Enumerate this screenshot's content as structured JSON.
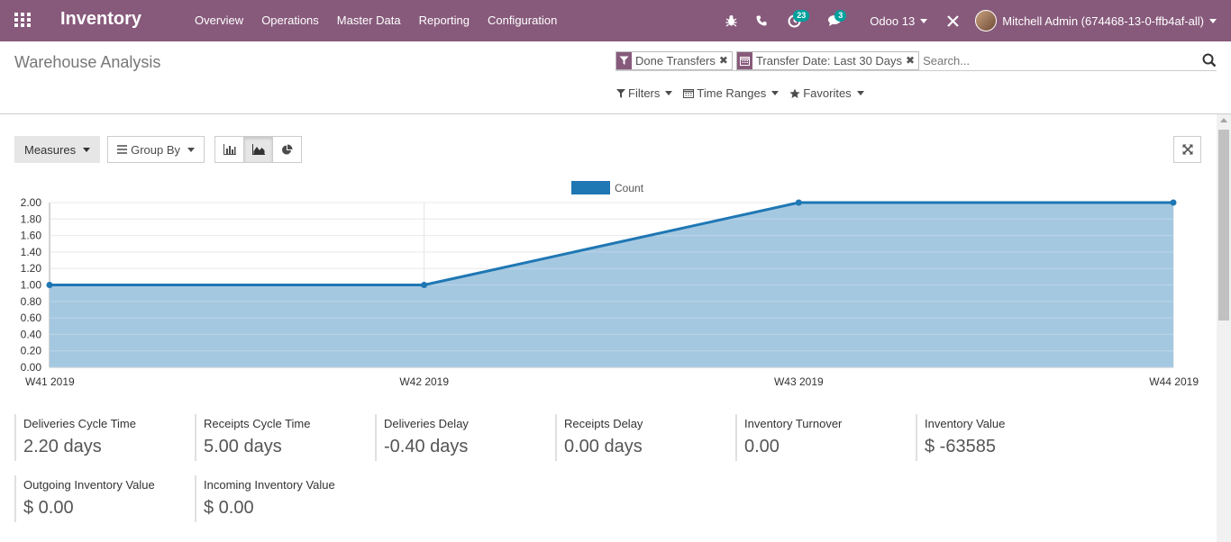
{
  "navbar": {
    "app_name": "Inventory",
    "menu": [
      "Overview",
      "Operations",
      "Master Data",
      "Reporting",
      "Configuration"
    ],
    "activity_count": "23",
    "messages_count": "3",
    "database": "Odoo 13",
    "user": "Mitchell Admin (674468-13-0-ffb4af-all)"
  },
  "control_panel": {
    "title": "Warehouse Analysis",
    "facets": [
      {
        "icon": "filter-icon",
        "label": "Done Transfers"
      },
      {
        "icon": "calendar-icon",
        "label": "Transfer Date: Last 30 Days"
      }
    ],
    "search_placeholder": "Search...",
    "filters_label": "Filters",
    "time_ranges_label": "Time Ranges",
    "favorites_label": "Favorites"
  },
  "toolbar": {
    "measures_label": "Measures",
    "group_by_label": "Group By"
  },
  "chart_data": {
    "type": "area",
    "categories": [
      "W41 2019",
      "W42 2019",
      "W43 2019",
      "W44 2019"
    ],
    "series": [
      {
        "name": "Count",
        "values": [
          1,
          1,
          2,
          2
        ]
      }
    ],
    "ylim": [
      0,
      2
    ],
    "yticks": [
      "0.00",
      "0.20",
      "0.40",
      "0.60",
      "0.80",
      "1.00",
      "1.20",
      "1.40",
      "1.60",
      "1.80",
      "2.00"
    ],
    "legend": "top-center",
    "grid": true,
    "colors": {
      "line": "#1f77b4",
      "fill": "#a5c8e1"
    }
  },
  "kpis": [
    {
      "label": "Deliveries Cycle Time",
      "value": "2.20 days"
    },
    {
      "label": "Receipts Cycle Time",
      "value": "5.00 days"
    },
    {
      "label": "Deliveries Delay",
      "value": "-0.40 days"
    },
    {
      "label": "Receipts Delay",
      "value": "0.00 days"
    },
    {
      "label": "Inventory Turnover",
      "value": "0.00"
    },
    {
      "label": "Inventory Value",
      "value": "$ -63585"
    },
    {
      "label": "Outgoing Inventory Value",
      "value": "$ 0.00"
    },
    {
      "label": "Incoming Inventory Value",
      "value": "$ 0.00"
    }
  ],
  "colors": {
    "brand": "#875a7b",
    "badge": "#00a09d"
  }
}
